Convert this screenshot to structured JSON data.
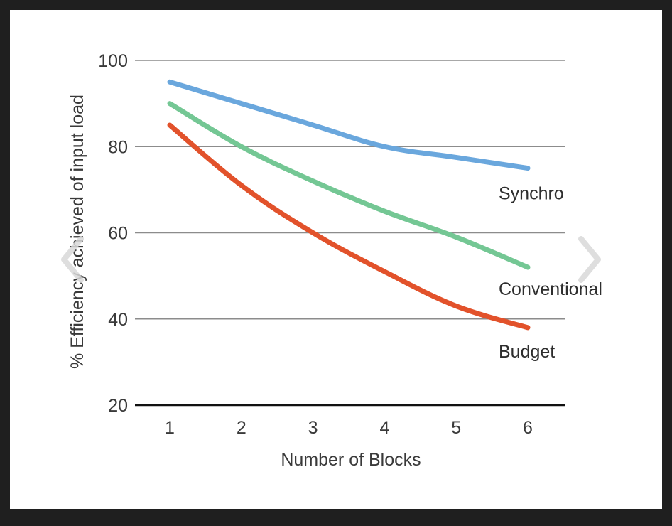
{
  "chart_data": {
    "type": "line",
    "title": "",
    "xlabel": "Number of Blocks",
    "ylabel": "% Efficiency achieved of input load",
    "x": [
      1,
      2,
      3,
      4,
      5,
      6
    ],
    "x_tick_labels": [
      "1",
      "2",
      "3",
      "4",
      "5",
      "6"
    ],
    "ylim": [
      20,
      100
    ],
    "y_ticks": [
      20,
      40,
      60,
      80,
      100
    ],
    "y_tick_labels": [
      "20",
      "40",
      "60",
      "80",
      "100"
    ],
    "grid": true,
    "legend": "direct labels at right end of each line",
    "series": [
      {
        "name": "Synchro",
        "color": "#6aa7dd",
        "values": [
          95,
          90,
          85,
          80,
          77.5,
          75
        ]
      },
      {
        "name": "Conventional",
        "color": "#74c794",
        "values": [
          90,
          80,
          72,
          65,
          59,
          52
        ]
      },
      {
        "name": "Budget",
        "color": "#e2522b",
        "values": [
          85,
          71,
          60,
          51,
          43,
          38
        ]
      }
    ]
  },
  "icons": {
    "prev": "chevron-left-icon",
    "next": "chevron-right-icon"
  }
}
